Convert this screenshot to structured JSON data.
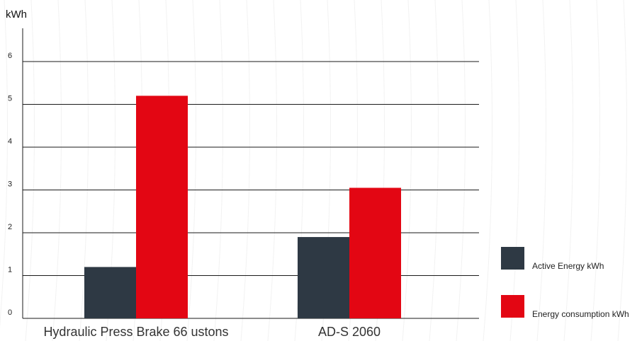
{
  "chart_data": {
    "type": "bar",
    "ylabel": "kWh",
    "xlabel": "",
    "ylim": [
      0,
      6
    ],
    "yticks": [
      0,
      1,
      2,
      3,
      4,
      5,
      6
    ],
    "categories": [
      "Hydraulic Press Brake 66 ustons",
      "AD-S 2060"
    ],
    "series": [
      {
        "name": "Active Energy kWh",
        "color": "#2e3944",
        "values": [
          1.2,
          1.9
        ]
      },
      {
        "name": "Energy consumption kWh",
        "color": "#e30613",
        "values": [
          5.2,
          3.05
        ]
      }
    ],
    "grid": true,
    "legend_position": "right"
  }
}
